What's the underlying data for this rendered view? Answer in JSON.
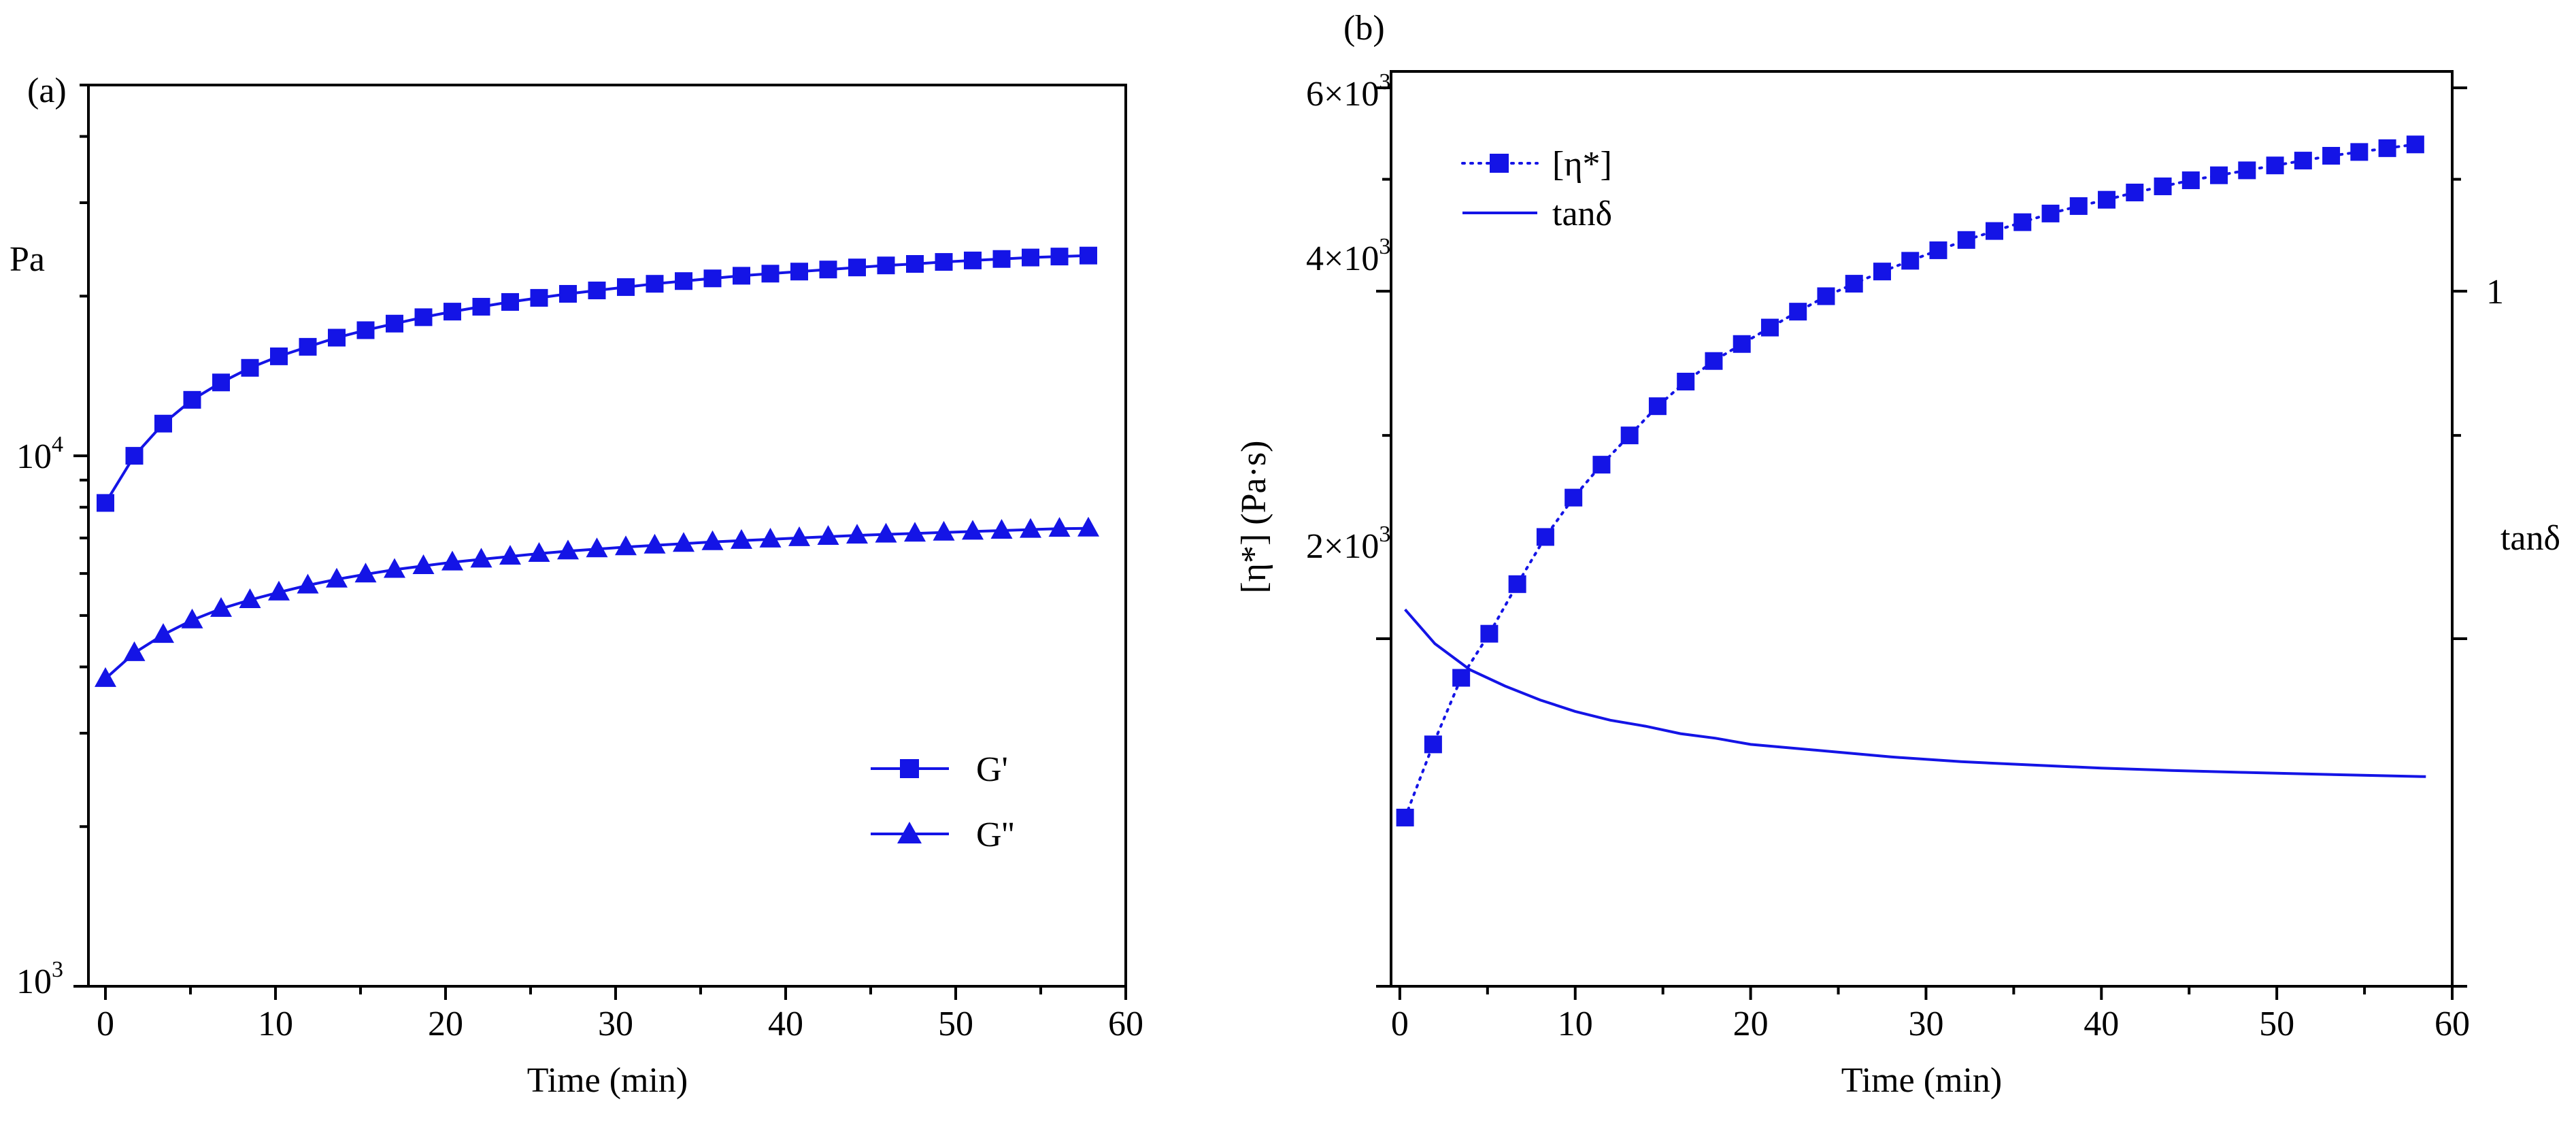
{
  "colors": {
    "series": "#1414e6",
    "axis": "#000000",
    "background": "#ffffff"
  },
  "chart_data": [
    {
      "type": "line",
      "panel_label": "(a)",
      "xlabel": "Time (min)",
      "ylabel": "Pa",
      "yscale": "log",
      "xlim": [
        -1,
        60
      ],
      "ylim": [
        1000,
        50000
      ],
      "x_ticks": [
        "0",
        "10",
        "20",
        "30",
        "40",
        "50",
        "60"
      ],
      "y_tick_labels": [
        {
          "base": "10",
          "exp": "3",
          "value": 1000
        },
        {
          "base": "10",
          "exp": "4",
          "value": 10000
        }
      ],
      "legend": {
        "position": "right-middle",
        "entries": [
          "G'",
          "G''"
        ]
      },
      "series": [
        {
          "name": "G'",
          "marker": "square",
          "x": [
            0,
            1.7,
            3.4,
            5.1,
            6.8,
            8.5,
            10.2,
            11.9,
            13.6,
            15.3,
            17.0,
            18.7,
            20.4,
            22.1,
            23.8,
            25.5,
            27.2,
            28.9,
            30.6,
            32.3,
            34.0,
            35.7,
            37.4,
            39.1,
            40.8,
            42.5,
            44.2,
            45.9,
            47.6,
            49.3,
            51.0,
            52.7,
            54.4,
            56.1,
            57.8
          ],
          "values": [
            8150,
            10000,
            11500,
            12750,
            13750,
            14650,
            15400,
            16050,
            16700,
            17250,
            17750,
            18250,
            18700,
            19100,
            19500,
            19850,
            20200,
            20500,
            20800,
            21100,
            21350,
            21600,
            21850,
            22050,
            22250,
            22450,
            22650,
            22850,
            23000,
            23200,
            23350,
            23500,
            23650,
            23750,
            23850
          ]
        },
        {
          "name": "G''",
          "marker": "triangle",
          "x": [
            0,
            1.7,
            3.4,
            5.1,
            6.8,
            8.5,
            10.2,
            11.9,
            13.6,
            15.3,
            17.0,
            18.7,
            20.4,
            22.1,
            23.8,
            25.5,
            27.2,
            28.9,
            30.6,
            32.3,
            34.0,
            35.7,
            37.4,
            39.1,
            40.8,
            42.5,
            44.2,
            45.9,
            47.6,
            49.3,
            51.0,
            52.7,
            54.4,
            56.1,
            57.8
          ],
          "values": [
            3800,
            4250,
            4600,
            4900,
            5150,
            5350,
            5530,
            5700,
            5850,
            5980,
            6100,
            6200,
            6300,
            6380,
            6460,
            6540,
            6610,
            6670,
            6730,
            6780,
            6830,
            6880,
            6920,
            6960,
            7000,
            7040,
            7080,
            7110,
            7140,
            7170,
            7200,
            7230,
            7260,
            7290,
            7300
          ]
        }
      ]
    },
    {
      "type": "line",
      "panel_label": "(b)",
      "xlabel": "Time (min)",
      "ylabel": "[η*] (Pa·s)",
      "ylabel_right": "tanδ",
      "yscale": "log",
      "xlim": [
        -0.5,
        60
      ],
      "ylim": [
        1000,
        6200
      ],
      "x_ticks": [
        "0",
        "10",
        "20",
        "30",
        "40",
        "50",
        "60"
      ],
      "y_tick_labels": [
        {
          "base": "2×10",
          "exp": "3",
          "value": 2000
        },
        {
          "base": "4×10",
          "exp": "3",
          "value": 4000
        },
        {
          "base": "6×10",
          "exp": "3",
          "value": 6000
        }
      ],
      "right_tick_label": "1",
      "legend": {
        "position": "top-left",
        "entries": [
          "[η*]",
          "tanδ"
        ]
      },
      "series": [
        {
          "name": "[η*]",
          "marker": "square",
          "x": [
            0.3,
            1.9,
            3.5,
            5.1,
            6.7,
            8.3,
            9.9,
            11.5,
            13.1,
            14.7,
            16.3,
            17.9,
            19.5,
            21.1,
            22.7,
            24.3,
            25.9,
            27.5,
            29.1,
            30.7,
            32.3,
            33.9,
            35.5,
            37.1,
            38.7,
            40.3,
            41.9,
            43.5,
            45.1,
            46.7,
            48.3,
            49.9,
            51.5,
            53.1,
            54.7,
            56.3,
            57.9
          ],
          "values": [
            1400,
            1620,
            1850,
            2020,
            2230,
            2450,
            2650,
            2830,
            3000,
            3180,
            3340,
            3480,
            3600,
            3720,
            3840,
            3960,
            4060,
            4160,
            4250,
            4340,
            4430,
            4510,
            4590,
            4670,
            4740,
            4800,
            4870,
            4930,
            4990,
            5040,
            5090,
            5140,
            5190,
            5240,
            5280,
            5320,
            5360
          ]
        },
        {
          "name": "tanδ",
          "marker": "none",
          "x": [
            0.3,
            2,
            4,
            6,
            8,
            10,
            12,
            14,
            16,
            18,
            20,
            24,
            28,
            32,
            36,
            40,
            44,
            48,
            52,
            56,
            58.5
          ],
          "values": [
            2120,
            1980,
            1880,
            1820,
            1770,
            1730,
            1700,
            1680,
            1655,
            1640,
            1620,
            1600,
            1580,
            1565,
            1555,
            1545,
            1538,
            1532,
            1527,
            1522,
            1519
          ]
        }
      ]
    }
  ]
}
